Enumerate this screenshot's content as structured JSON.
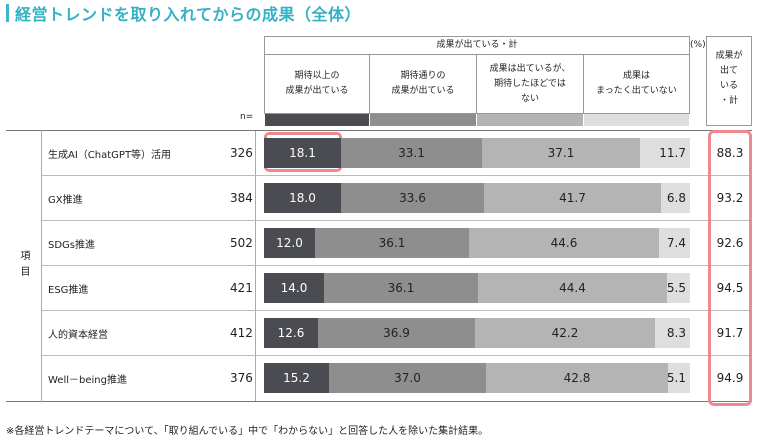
{
  "title": "経営トレンドを取り入れてからの成果（全体）",
  "colors": {
    "accent": "#34b1c4",
    "highlight": "#ee8a8f",
    "seg0": "#4a4c52",
    "seg1": "#8e8e8e",
    "seg2": "#b4b4b4",
    "seg3": "#dedede"
  },
  "header": {
    "group_label": "成果が出ている・計",
    "percent_unit": "(%)",
    "n_label": "n=",
    "item_label": "項目",
    "total_label": "成果が\n出て\nいる\n・計",
    "columns": [
      {
        "label": "期待以上の\n成果が出ている"
      },
      {
        "label": "期待通りの\n成果が出ている"
      },
      {
        "label": "成果は出ているが、\n期待したほどでは\nない"
      },
      {
        "label": "成果は\nまったく出ていない"
      }
    ]
  },
  "chart_data": {
    "type": "bar",
    "orientation": "horizontal-stacked",
    "title": "経営トレンドを取り入れてからの成果（全体）",
    "unit": "%",
    "xlim": [
      0,
      100
    ],
    "series_names": [
      "期待以上の成果が出ている",
      "期待通りの成果が出ている",
      "成果は出ているが、期待したほどではない",
      "成果はまったく出ていない"
    ],
    "rows": [
      {
        "label": "生成AI（ChatGPT等）活用",
        "n": "326",
        "values": [
          18.1,
          33.1,
          37.1,
          11.7
        ],
        "value_labels": [
          "18.1",
          "33.1",
          "37.1",
          "11.7"
        ],
        "total": "88.3"
      },
      {
        "label": "GX推進",
        "n": "384",
        "values": [
          18.0,
          33.6,
          41.7,
          6.8
        ],
        "value_labels": [
          "18.0",
          "33.6",
          "41.7",
          "6.8"
        ],
        "total": "93.2"
      },
      {
        "label": "SDGs推進",
        "n": "502",
        "values": [
          12.0,
          36.1,
          44.6,
          7.4
        ],
        "value_labels": [
          "12.0",
          "36.1",
          "44.6",
          "7.4"
        ],
        "total": "92.6"
      },
      {
        "label": "ESG推進",
        "n": "421",
        "values": [
          14.0,
          36.1,
          44.4,
          5.5
        ],
        "value_labels": [
          "14.0",
          "36.1",
          "44.4",
          "5.5"
        ],
        "total": "94.5"
      },
      {
        "label": "人的資本経営",
        "n": "412",
        "values": [
          12.6,
          36.9,
          42.2,
          8.3
        ],
        "value_labels": [
          "12.6",
          "36.9",
          "42.2",
          "8.3"
        ],
        "total": "91.7"
      },
      {
        "label": "Well－being推進",
        "n": "376",
        "values": [
          15.2,
          37.0,
          42.8,
          5.1
        ],
        "value_labels": [
          "15.2",
          "37.0",
          "42.8",
          "5.1"
        ],
        "total": "94.9"
      }
    ]
  },
  "footnote": "※各経営トレンドテーマについて、「取り組んでいる」中で「わからない」と回答した人を除いた集計結果。"
}
